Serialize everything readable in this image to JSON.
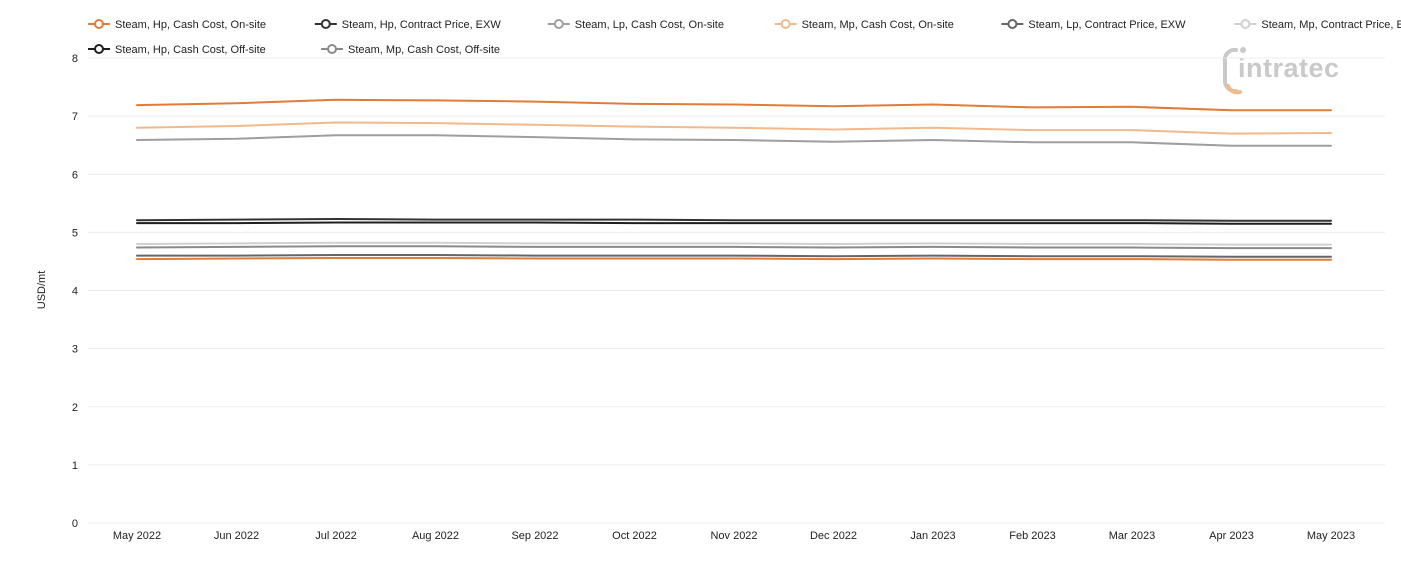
{
  "chart_data": {
    "type": "line",
    "title": "",
    "xlabel": "",
    "ylabel": "USD/mt",
    "ylim": [
      0,
      8
    ],
    "yticks": [
      0,
      1,
      2,
      3,
      4,
      5,
      6,
      7,
      8
    ],
    "grid": true,
    "legend_position": "top",
    "categories": [
      "May 2022",
      "Jun 2022",
      "Jul 2022",
      "Aug 2022",
      "Sep 2022",
      "Oct 2022",
      "Nov 2022",
      "Dec 2022",
      "Jan 2023",
      "Feb 2023",
      "Mar 2023",
      "Apr 2023",
      "May 2023"
    ],
    "series": [
      {
        "name": "Steam, Hp, Cash Cost, On-site",
        "color": "#e07b39",
        "values": [
          7.19,
          7.22,
          7.28,
          7.27,
          7.25,
          7.21,
          7.2,
          7.17,
          7.2,
          7.15,
          7.16,
          7.1,
          7.1
        ]
      },
      {
        "name": "Steam, Hp, Contract Price, EXW",
        "color": "#333333",
        "values": [
          5.21,
          5.22,
          5.23,
          5.22,
          5.22,
          5.22,
          5.21,
          5.21,
          5.21,
          5.21,
          5.21,
          5.2,
          5.2
        ]
      },
      {
        "name": "Steam, Lp, Cash Cost, On-site",
        "color": "#9e9e9e",
        "values": [
          6.59,
          6.61,
          6.67,
          6.67,
          6.64,
          6.6,
          6.59,
          6.56,
          6.59,
          6.55,
          6.55,
          6.49,
          6.49
        ]
      },
      {
        "name": "Steam, Mp, Cash Cost, On-site",
        "color": "#f2b98c",
        "values": [
          6.8,
          6.83,
          6.89,
          6.88,
          6.85,
          6.82,
          6.8,
          6.77,
          6.8,
          6.76,
          6.76,
          6.7,
          6.71
        ]
      },
      {
        "name": "Steam, Lp, Contract Price, EXW",
        "color": "#666666",
        "values": [
          4.6,
          4.6,
          4.61,
          4.61,
          4.6,
          4.6,
          4.6,
          4.59,
          4.6,
          4.59,
          4.59,
          4.58,
          4.58
        ]
      },
      {
        "name": "Steam, Mp, Contract Price, EXW",
        "color": "#d0d0d0",
        "values": [
          4.8,
          4.81,
          4.82,
          4.82,
          4.81,
          4.81,
          4.81,
          4.8,
          4.81,
          4.8,
          4.8,
          4.79,
          4.79
        ]
      },
      {
        "name": "Steam, Lp, Cash Cost, Off-site",
        "color": "#e07b39",
        "values": [
          4.54,
          4.55,
          4.56,
          4.56,
          4.55,
          4.55,
          4.55,
          4.54,
          4.55,
          4.54,
          4.54,
          4.53,
          4.53
        ]
      },
      {
        "name": "Steam, Hp, Cash Cost, Off-site",
        "color": "#1f1f1f",
        "values": [
          5.16,
          5.16,
          5.17,
          5.17,
          5.17,
          5.16,
          5.16,
          5.16,
          5.16,
          5.16,
          5.16,
          5.15,
          5.15
        ]
      },
      {
        "name": "Steam, Mp, Cash Cost, Off-site",
        "color": "#8a8a8a",
        "values": [
          4.74,
          4.75,
          4.76,
          4.76,
          4.75,
          4.75,
          4.75,
          4.74,
          4.75,
          4.74,
          4.74,
          4.73,
          4.73
        ]
      }
    ]
  },
  "logo": {
    "text": "intratec",
    "color": "#c9c9c9",
    "accent": "#f2b98c"
  }
}
